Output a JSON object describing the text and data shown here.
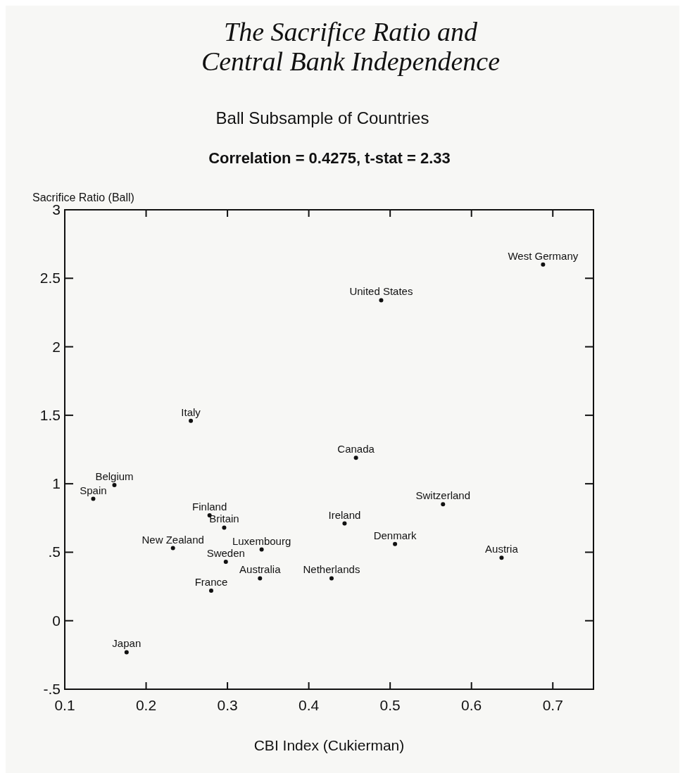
{
  "chart_data": {
    "type": "scatter",
    "title": "The Sacrifice Ratio and Central Bank Independence",
    "subtitle": "Ball Subsample of Countries",
    "annotations": [
      "Correlation = 0.4275, t-stat = 2.33"
    ],
    "xlabel": "CBI Index (Cukierman)",
    "ylabel": "Sacrifice Ratio (Ball)",
    "marker": "circle",
    "xlim": [
      0.1,
      0.75
    ],
    "ylim": [
      -0.5,
      3
    ],
    "xticks": [
      0.1,
      0.2,
      0.3,
      0.4,
      0.5,
      0.6,
      0.7
    ],
    "yticks": [
      {
        "value": -0.5,
        "label": "-.5"
      },
      0,
      {
        "value": 0.5,
        "label": ".5"
      },
      1,
      1.5,
      2,
      2.5,
      3
    ],
    "series": [
      {
        "color": "#111111",
        "x": [
          0.688,
          0.489,
          0.255,
          0.458,
          0.161,
          0.135,
          0.565,
          0.278,
          0.296,
          0.444,
          0.233,
          0.342,
          0.506,
          0.637,
          0.298,
          0.34,
          0.428,
          0.28,
          0.176
        ],
        "values": [
          2.6,
          2.34,
          1.46,
          1.19,
          0.99,
          0.89,
          0.85,
          0.77,
          0.68,
          0.71,
          0.53,
          0.52,
          0.56,
          0.46,
          0.43,
          0.31,
          0.31,
          0.22,
          -0.23
        ],
        "value_labels": [
          "West Germany",
          "United States",
          "Italy",
          "Canada",
          "Belgium",
          "Spain",
          "Switzerland",
          "Finland",
          "Britain",
          "Ireland",
          "New Zealand",
          "Luxembourg",
          "Denmark",
          "Austria",
          "Sweden",
          "Australia",
          "Netherlands",
          "France",
          "Japan"
        ]
      }
    ]
  }
}
